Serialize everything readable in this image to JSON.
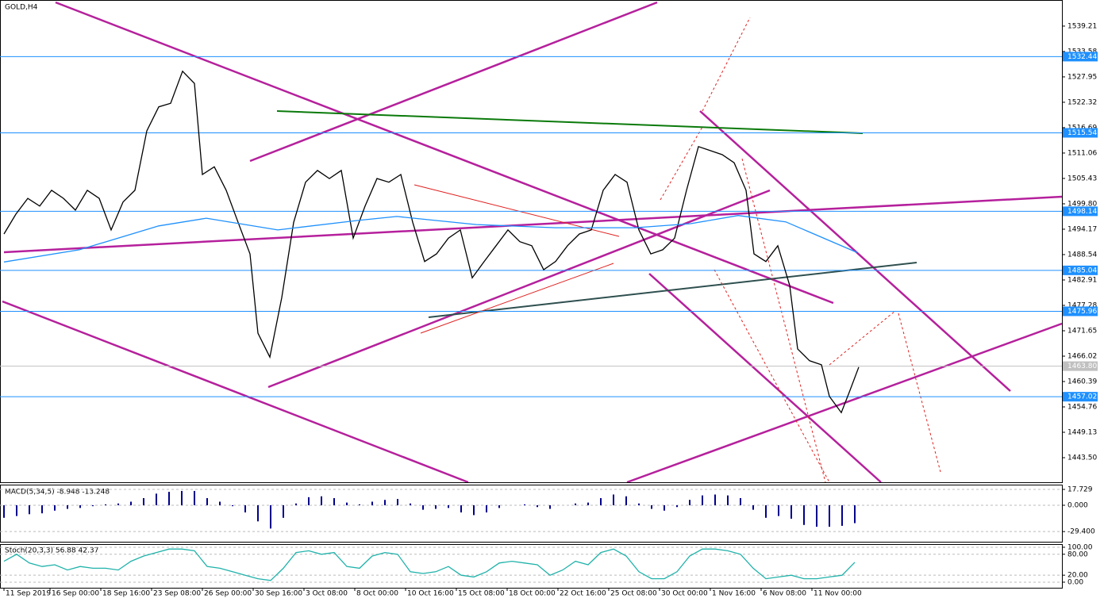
{
  "chart_data": [
    {
      "type": "line",
      "title": "GOLD,H4",
      "xlim": [
        -1.25,
        333.25
      ],
      "ylim": [
        1438.05,
        1545.0
      ],
      "yticks": [
        1539.21,
        1533.58,
        1527.95,
        1522.32,
        1516.69,
        1511.06,
        1505.43,
        {
          "value": 1499.8,
          "label": "1499.80"
        },
        1494.17,
        1488.54,
        1482.91,
        1477.28,
        1471.65,
        1466.02,
        1460.39,
        1454.76,
        1449.13,
        {
          "value": 1443.5,
          "label": "1443.50"
        }
      ],
      "hlines": [
        1532.44,
        1515.54,
        1498.14,
        1485.04,
        1475.96,
        1457.02
      ],
      "hline_color": "#1e90ff",
      "last_price": {
        "value": 1463.8,
        "label": "1463.80"
      },
      "series": [
        {
          "color": "#000000",
          "x": [
            0,
            3.75,
            7.5,
            11.25,
            15,
            18.75,
            22.5,
            26.25,
            30,
            33.75,
            37.5,
            41.25,
            45,
            48.75,
            52.5,
            56.25,
            60,
            62.5,
            66.25,
            70,
            73.75,
            77.5,
            80,
            83.75,
            87.5,
            91.25,
            95,
            98.75,
            102.5,
            106.25,
            110,
            113.75,
            117.5,
            121.25,
            125,
            128.75,
            132.5,
            136.25,
            140,
            143.75,
            147.5,
            151.25,
            155,
            158.75,
            162.5,
            166.25,
            170,
            173.75,
            177.5,
            181.25,
            185,
            188.75,
            192.5,
            196.25,
            200,
            203.75,
            207.5,
            211.25,
            215,
            218.75,
            222.5,
            226.25,
            230,
            233.75,
            236.25,
            240,
            243.75,
            247.5,
            250,
            253.75,
            257.5,
            260,
            263.75,
            266.25,
            269.25
          ],
          "values": [
            1493.1,
            1497.5,
            1501,
            1499.3,
            1502.8,
            1501,
            1498.4,
            1502.8,
            1501,
            1494,
            1500.2,
            1502.8,
            1516,
            1521.3,
            1522.1,
            1529.2,
            1526.5,
            1506.3,
            1508,
            1502.8,
            1495.7,
            1488.7,
            1471.1,
            1465.8,
            1479,
            1495.7,
            1504.6,
            1507.2,
            1505.4,
            1507.2,
            1492.2,
            1499.3,
            1505.4,
            1504.6,
            1506.3,
            1495.7,
            1487,
            1488.7,
            1492.2,
            1494,
            1483.4,
            1487,
            1490.5,
            1494,
            1491.4,
            1490.5,
            1485.2,
            1487,
            1490.5,
            1493.1,
            1494,
            1502.8,
            1506.3,
            1504.6,
            1494,
            1488.7,
            1489.6,
            1492.2,
            1502.8,
            1512.5,
            1511.6,
            1510.7,
            1508.9,
            1502.8,
            1488.7,
            1487,
            1490.5,
            1481.7,
            1467.6,
            1465,
            1464.1,
            1457.1,
            1453.5,
            1458,
            1463.6
          ]
        },
        {
          "color": "#1e90ff",
          "x": [
            0,
            23.75,
            48.75,
            63.75,
            86.25,
            111.25,
            123.75,
            148.75,
            173.75,
            198.75,
            216.25,
            231.25,
            246.25,
            268.75
          ],
          "values": [
            1486.9,
            1489.6,
            1494.9,
            1496.6,
            1494,
            1496.1,
            1497,
            1495.2,
            1494.5,
            1494.5,
            1495.4,
            1497.2,
            1495.8,
            1489
          ]
        }
      ]
    },
    {
      "type": "bar",
      "title": "MACD(5,34,5) -8.948 -13.248",
      "xlim": [
        -1.25,
        333.25
      ],
      "ylim": [
        -40.78,
        23.05
      ],
      "yticks": [
        17.729,
        {
          "value": 0,
          "label": "0.000"
        },
        {
          "value": -29.4,
          "label": "-29.400"
        }
      ],
      "grid": true,
      "color": "#00008b",
      "x": [
        0,
        4,
        8,
        12,
        16,
        20,
        24,
        28,
        32,
        36,
        40,
        44,
        48,
        52,
        56,
        60,
        64,
        68,
        72,
        76,
        80,
        84,
        88,
        92,
        96,
        100,
        104,
        108,
        112,
        116,
        120,
        124,
        128,
        132,
        136,
        140,
        144,
        148,
        152,
        156,
        160,
        164,
        168,
        172,
        176,
        180,
        184,
        188,
        192,
        196,
        200,
        204,
        208,
        212,
        216,
        220,
        224,
        228,
        232,
        236,
        240,
        244,
        248,
        252,
        256,
        260,
        264,
        268
      ],
      "values": [
        -14,
        -12,
        -10,
        -9,
        -6,
        -4,
        -3,
        -1,
        1,
        2,
        4,
        8,
        13,
        15,
        16,
        16,
        8,
        4,
        -1,
        -8,
        -18,
        -26,
        -14,
        2,
        9,
        10,
        8,
        3,
        1,
        4,
        6,
        7,
        2,
        -5,
        -4,
        -3,
        -8,
        -11,
        -8,
        -3,
        0,
        1,
        -2,
        -4,
        0,
        2,
        3,
        8,
        12,
        10,
        2,
        -4,
        -6,
        -2,
        6,
        11,
        12,
        11,
        8,
        -5,
        -14,
        -12,
        -15,
        -22,
        -24,
        -24,
        -23,
        -20
      ]
    },
    {
      "type": "line",
      "title": "Stoch(20,3,3) 56.88 42.37",
      "xlim": [
        -1.25,
        333.25
      ],
      "ylim": [
        -16,
        109
      ],
      "yticks": [
        {
          "value": 100,
          "label": "100.00"
        },
        {
          "value": 80,
          "label": "80.00"
        },
        {
          "value": 20,
          "label": "20.00"
        },
        {
          "value": 0,
          "label": "0.00"
        }
      ],
      "grid": true,
      "xticks": [
        {
          "value": 0,
          "label": "11 Sep 2019"
        },
        {
          "value": 14.5,
          "label": "16 Sep 00:00"
        },
        {
          "value": 30.5,
          "label": "18 Sep 16:00"
        },
        {
          "value": 46.5,
          "label": "23 Sep 08:00"
        },
        {
          "value": 62.5,
          "label": "26 Sep 00:00"
        },
        {
          "value": 78.5,
          "label": "30 Sep 16:00"
        },
        {
          "value": 94.5,
          "label": "3 Oct 08:00"
        },
        {
          "value": 110.5,
          "label": "8 Oct 00:00"
        },
        {
          "value": 126.5,
          "label": "10 Oct 16:00"
        },
        {
          "value": 142.5,
          "label": "15 Oct 08:00"
        },
        {
          "value": 158.5,
          "label": "18 Oct 00:00"
        },
        {
          "value": 174.5,
          "label": "22 Oct 16:00"
        },
        {
          "value": 190.5,
          "label": "25 Oct 08:00"
        },
        {
          "value": 206.5,
          "label": "30 Oct 00:00"
        },
        {
          "value": 222.5,
          "label": "1 Nov 16:00"
        },
        {
          "value": 238.5,
          "label": "6 Nov 08:00"
        },
        {
          "value": 254.5,
          "label": "11 Nov 00:00"
        }
      ],
      "series": [
        {
          "color": "#20b2aa",
          "x": [
            0,
            4,
            8,
            12,
            16,
            20,
            24,
            28,
            32,
            36,
            40,
            44,
            48,
            52,
            56,
            60,
            64,
            68,
            72,
            76,
            80,
            84,
            88,
            92,
            96,
            100,
            104,
            108,
            112,
            116,
            120,
            124,
            128,
            132,
            136,
            140,
            144,
            148,
            152,
            156,
            160,
            164,
            168,
            172,
            176,
            180,
            184,
            188,
            192,
            196,
            200,
            204,
            208,
            212,
            216,
            220,
            224,
            228,
            232,
            236,
            240,
            244,
            248,
            252,
            256,
            260,
            264,
            268
          ],
          "values": [
            60,
            80,
            55,
            45,
            50,
            35,
            45,
            40,
            40,
            35,
            60,
            75,
            85,
            95,
            95,
            90,
            45,
            40,
            30,
            20,
            10,
            5,
            40,
            85,
            90,
            80,
            85,
            45,
            40,
            75,
            85,
            80,
            30,
            25,
            30,
            45,
            20,
            15,
            30,
            55,
            60,
            55,
            50,
            20,
            35,
            60,
            50,
            85,
            95,
            75,
            30,
            10,
            10,
            30,
            75,
            95,
            95,
            90,
            80,
            40,
            10,
            15,
            20,
            10,
            10,
            15,
            20,
            57
          ]
        }
      ]
    }
  ]
}
